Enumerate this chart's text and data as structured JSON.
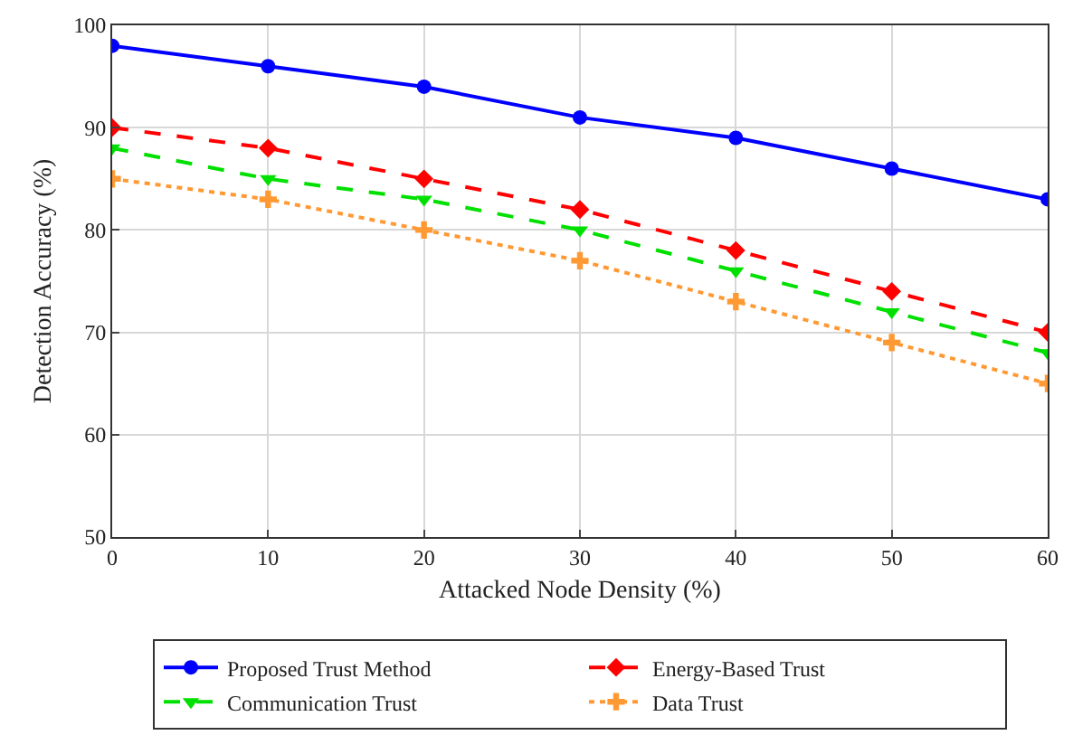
{
  "chart_data": {
    "type": "line",
    "xlabel": "Attacked Node Density (%)",
    "ylabel": "Detection Accuracy (%)",
    "x": [
      0,
      10,
      20,
      30,
      40,
      50,
      60
    ],
    "xlim": [
      0,
      60
    ],
    "xticks": [
      0,
      10,
      20,
      30,
      40,
      50,
      60
    ],
    "ylim": [
      50,
      100
    ],
    "yticks": [
      50,
      60,
      70,
      80,
      90,
      100
    ],
    "grid": true,
    "legend": "bottom",
    "series": [
      {
        "name": "Proposed Trust Method",
        "color": "#0000ff",
        "marker": "circle",
        "line_style": "solid",
        "values": [
          98,
          96,
          94,
          91,
          89,
          86,
          83
        ]
      },
      {
        "name": "Energy-Based Trust",
        "color": "#ff0000",
        "marker": "diamond",
        "line_style": "dashed",
        "values": [
          90,
          88,
          85,
          82,
          78,
          74,
          70
        ]
      },
      {
        "name": "Communication Trust",
        "color": "#00e000",
        "marker": "triangle",
        "line_style": "dashed",
        "values": [
          88,
          85,
          83,
          80,
          76,
          72,
          68
        ]
      },
      {
        "name": "Data Trust",
        "color": "#ff9933",
        "marker": "cross",
        "line_style": "dotted",
        "values": [
          85,
          83,
          80,
          77,
          73,
          69,
          65
        ]
      }
    ]
  }
}
